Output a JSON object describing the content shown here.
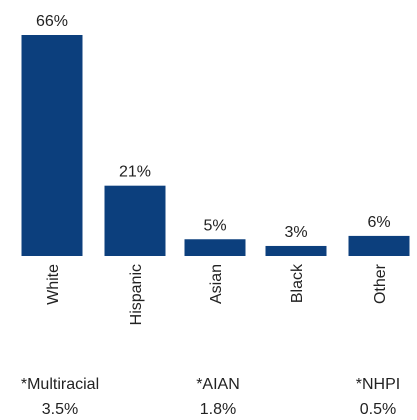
{
  "chart_data": {
    "type": "bar",
    "categories": [
      "White",
      "Hispanic",
      "Asian",
      "Black",
      "Other"
    ],
    "values": [
      66,
      21,
      5,
      3,
      6
    ],
    "value_labels": [
      "66%",
      "21%",
      "5%",
      "3%",
      "6%"
    ],
    "color": "#0c3f7d",
    "annotations": [
      {
        "label": "*Multiracial",
        "value": "3.5%"
      },
      {
        "label": "*AIAN",
        "value": "1.8%"
      },
      {
        "label": "*NHPI",
        "value": "0.5%"
      }
    ]
  }
}
